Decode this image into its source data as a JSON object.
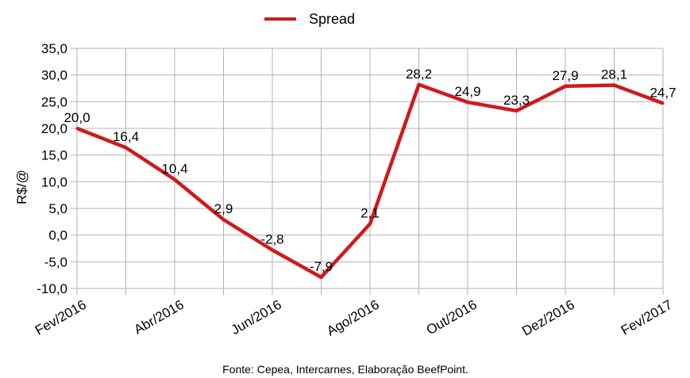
{
  "chart_data": {
    "type": "line",
    "legend": {
      "position": "top-center"
    },
    "ylabel": "R$/@",
    "ylim": [
      -10,
      35
    ],
    "y_ticks": [
      "35,0",
      "30,0",
      "25,0",
      "20,0",
      "15,0",
      "10,0",
      "5,0",
      "0,0",
      "-5,0",
      "-10,0"
    ],
    "y_tick_values": [
      35,
      30,
      25,
      20,
      15,
      10,
      5,
      0,
      -5,
      -10
    ],
    "x_tick_labels": [
      "Fev/2016",
      "Abr/2016",
      "Jun/2016",
      "Ago/2016",
      "Out/2016",
      "Dez/2016",
      "Fev/2017"
    ],
    "grid": true,
    "series": [
      {
        "name": "Spread",
        "color": "#d0191b",
        "x": [
          "Fev/2016",
          "Mar/2016",
          "Abr/2016",
          "Mai/2016",
          "Jun/2016",
          "Jul/2016",
          "Ago/2016",
          "Set/2016",
          "Out/2016",
          "Nov/2016",
          "Dez/2016",
          "Jan/2017",
          "Fev/2017"
        ],
        "values": [
          20.0,
          16.4,
          10.4,
          2.9,
          -2.8,
          -7.9,
          2.1,
          28.2,
          24.9,
          23.3,
          27.9,
          28.1,
          24.7
        ],
        "labels": [
          "20,0",
          "16,4",
          "10,4",
          "2,9",
          "-2,8",
          "-7,9",
          "2,1",
          "28,2",
          "24,9",
          "23,3",
          "27,9",
          "28,1",
          "24,7"
        ]
      }
    ],
    "source": "Fonte: Cepea, Intercarnes, Elaboração BeefPoint."
  }
}
